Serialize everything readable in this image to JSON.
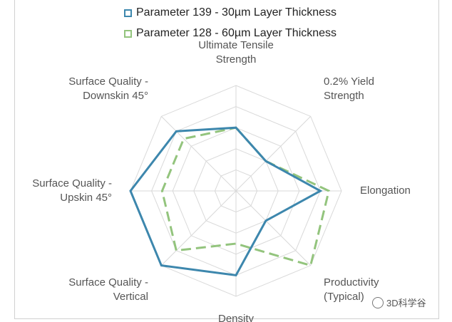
{
  "chart_data": {
    "type": "radar",
    "axes": [
      [
        "Ultimate Tensile",
        "Strength"
      ],
      [
        "0.2% Yield",
        "Strength"
      ],
      [
        "Elongation"
      ],
      [
        "Productivity",
        "(Typical)"
      ],
      [
        "Density"
      ],
      [
        "Surface Quality -",
        "Vertical"
      ],
      [
        "Surface Quality -",
        "Upskin 45°"
      ],
      [
        "Surface Quality -",
        "Downskin 45°"
      ]
    ],
    "rings": 5,
    "range": [
      0,
      5
    ],
    "legend_position": "top",
    "series": [
      {
        "name": "Parameter 139 - 30µm Layer Thickness",
        "color": "#3d87ad",
        "style": "solid",
        "values": [
          3,
          2,
          4,
          2,
          4,
          5,
          5,
          4
        ]
      },
      {
        "name": "Parameter 128 - 60µm Layer Thickness",
        "color": "#93c47d",
        "style": "dashed",
        "values": [
          3,
          2,
          4.4,
          5,
          2.5,
          4,
          3.5,
          3.5
        ]
      }
    ]
  },
  "legend": {
    "series1": "Parameter 139 - 30µm Layer Thickness",
    "series2": "Parameter 128 - 60µm Layer Thickness"
  },
  "watermark": {
    "text": "3D科学谷"
  }
}
